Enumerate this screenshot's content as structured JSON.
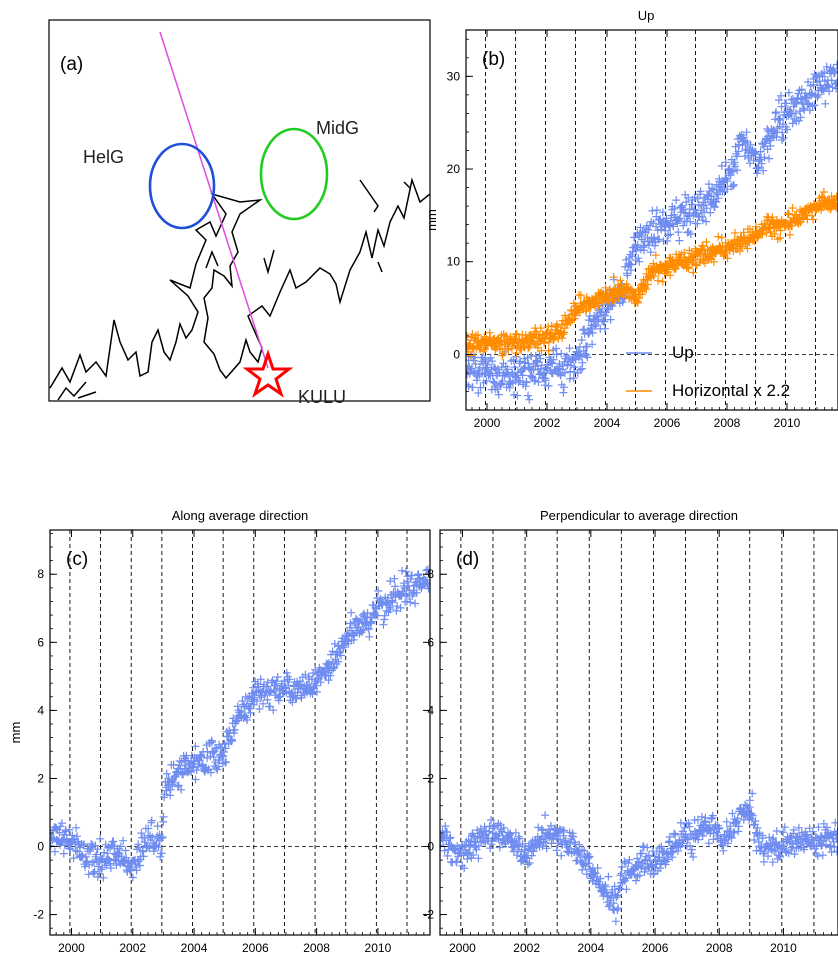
{
  "colors": {
    "up": "#6f8cf0",
    "horizontal": "#ff8c00",
    "helg": "#1f4fd8",
    "midg": "#22cc22",
    "track": "#e04ae0",
    "star": "#ff0000",
    "coast": "#000000"
  },
  "map": {
    "panel_label": "(a)",
    "labels": {
      "helg": "HelG",
      "midg": "MidG",
      "station": "KULU"
    }
  },
  "chart_data": [
    {
      "id": "b",
      "type": "scatter",
      "panel_label": "(b)",
      "title": "Up",
      "ylabel": "mm",
      "xlim": [
        1999.3,
        2011.7
      ],
      "ylim": [
        -6,
        35
      ],
      "xticks": [
        2000,
        2002,
        2004,
        2006,
        2008,
        2010
      ],
      "yticks": [
        0,
        10,
        20,
        30
      ],
      "vlines": [
        1999.95,
        2000.95,
        2001.95,
        2002.95,
        2003.95,
        2004.95,
        2005.95,
        2006.95,
        2007.95,
        2008.95,
        2009.95,
        2010.95
      ],
      "hline": 0,
      "legend": {
        "position": "bottom-right"
      },
      "series": [
        {
          "name": "Up",
          "marker": "+",
          "color_key": "up",
          "trend": [
            [
              1999.3,
              -2
            ],
            [
              2000.5,
              -2.5
            ],
            [
              2002.0,
              -2
            ],
            [
              2003.0,
              -1
            ],
            [
              2003.5,
              3
            ],
            [
              2004.5,
              7
            ],
            [
              2005.0,
              12
            ],
            [
              2005.5,
              13
            ],
            [
              2006.5,
              15
            ],
            [
              2007.3,
              16
            ],
            [
              2008.0,
              19
            ],
            [
              2008.5,
              23
            ],
            [
              2009.0,
              21
            ],
            [
              2009.5,
              24
            ],
            [
              2010.0,
              26
            ],
            [
              2010.5,
              27
            ],
            [
              2011.0,
              29
            ],
            [
              2011.7,
              30
            ]
          ],
          "scatter": 2.2
        },
        {
          "name": "Horizontal x 2.2",
          "marker": "+",
          "color_key": "horizontal",
          "trend": [
            [
              1999.3,
              1.2
            ],
            [
              2000.5,
              1.2
            ],
            [
              2001.5,
              1.5
            ],
            [
              2002.5,
              2.5
            ],
            [
              2003.0,
              5
            ],
            [
              2003.5,
              5.5
            ],
            [
              2004.5,
              7
            ],
            [
              2005.0,
              6
            ],
            [
              2005.5,
              9
            ],
            [
              2006.5,
              10
            ],
            [
              2007.5,
              11
            ],
            [
              2008.5,
              12
            ],
            [
              2009.0,
              13
            ],
            [
              2009.5,
              14
            ],
            [
              2010.0,
              14
            ],
            [
              2010.5,
              15
            ],
            [
              2011.0,
              16
            ],
            [
              2011.7,
              16.5
            ]
          ],
          "scatter": 1.1
        }
      ]
    },
    {
      "id": "c",
      "type": "scatter",
      "panel_label": "(c)",
      "title": "Along average direction",
      "ylabel": "mm",
      "xlim": [
        1999.3,
        2011.7
      ],
      "ylim": [
        -2.6,
        9.3
      ],
      "xticks": [
        2000,
        2002,
        2004,
        2006,
        2008,
        2010
      ],
      "yticks": [
        -2,
        0,
        2,
        4,
        6,
        8
      ],
      "vlines": [
        1999.95,
        2000.95,
        2001.95,
        2002.95,
        2003.95,
        2004.95,
        2005.95,
        2006.95,
        2007.95,
        2008.95,
        2009.95,
        2010.95
      ],
      "hline": 0,
      "series": [
        {
          "marker": "+",
          "color_key": "up",
          "trend": [
            [
              1999.3,
              0.3
            ],
            [
              2000.0,
              0.2
            ],
            [
              2000.5,
              -0.3
            ],
            [
              2001.0,
              -0.5
            ],
            [
              2001.5,
              -0.2
            ],
            [
              2002.0,
              -0.6
            ],
            [
              2002.5,
              0.3
            ],
            [
              2002.95,
              -0.1
            ],
            [
              2003.05,
              1.9
            ],
            [
              2003.5,
              2.2
            ],
            [
              2004.0,
              2.4
            ],
            [
              2004.5,
              2.6
            ],
            [
              2005.0,
              2.8
            ],
            [
              2005.5,
              3.9
            ],
            [
              2006.0,
              4.5
            ],
            [
              2006.5,
              4.6
            ],
            [
              2007.0,
              4.6
            ],
            [
              2007.5,
              4.6
            ],
            [
              2008.0,
              4.9
            ],
            [
              2008.5,
              5.4
            ],
            [
              2009.0,
              6.2
            ],
            [
              2009.5,
              6.5
            ],
            [
              2010.0,
              7.0
            ],
            [
              2010.5,
              7.3
            ],
            [
              2011.0,
              7.6
            ],
            [
              2011.7,
              7.8
            ]
          ],
          "scatter": 0.5
        }
      ]
    },
    {
      "id": "d",
      "type": "scatter",
      "panel_label": "(d)",
      "title": "Perpendicular to average direction",
      "ylabel": "",
      "xlim": [
        1999.3,
        2011.7
      ],
      "ylim": [
        -2.6,
        9.3
      ],
      "xticks": [
        2000,
        2002,
        2004,
        2006,
        2008,
        2010
      ],
      "yticks": [
        -2,
        0,
        2,
        4,
        6,
        8
      ],
      "vlines": [
        1999.95,
        2000.95,
        2001.95,
        2002.95,
        2003.95,
        2004.95,
        2005.95,
        2006.95,
        2007.95,
        2008.95,
        2009.95,
        2010.95
      ],
      "hline": 0,
      "series": [
        {
          "marker": "+",
          "color_key": "up",
          "trend": [
            [
              1999.3,
              0.3
            ],
            [
              2000.0,
              -0.2
            ],
            [
              2000.5,
              0.2
            ],
            [
              2001.0,
              0.4
            ],
            [
              2001.5,
              0.2
            ],
            [
              2002.0,
              -0.3
            ],
            [
              2002.5,
              0.4
            ],
            [
              2003.0,
              0.3
            ],
            [
              2003.5,
              -0.2
            ],
            [
              2004.0,
              -0.7
            ],
            [
              2004.5,
              -1.4
            ],
            [
              2004.8,
              -1.6
            ],
            [
              2005.0,
              -0.8
            ],
            [
              2005.5,
              -0.5
            ],
            [
              2006.0,
              -0.5
            ],
            [
              2006.5,
              0.0
            ],
            [
              2007.0,
              0.3
            ],
            [
              2007.5,
              0.5
            ],
            [
              2008.0,
              0.5
            ],
            [
              2008.1,
              0.0
            ],
            [
              2008.6,
              0.9
            ],
            [
              2009.0,
              1.0
            ],
            [
              2009.2,
              0.2
            ],
            [
              2009.5,
              0.0
            ],
            [
              2010.0,
              0.0
            ],
            [
              2010.5,
              0.2
            ],
            [
              2011.0,
              0.2
            ],
            [
              2011.7,
              0.4
            ]
          ],
          "scatter": 0.45
        }
      ]
    }
  ]
}
